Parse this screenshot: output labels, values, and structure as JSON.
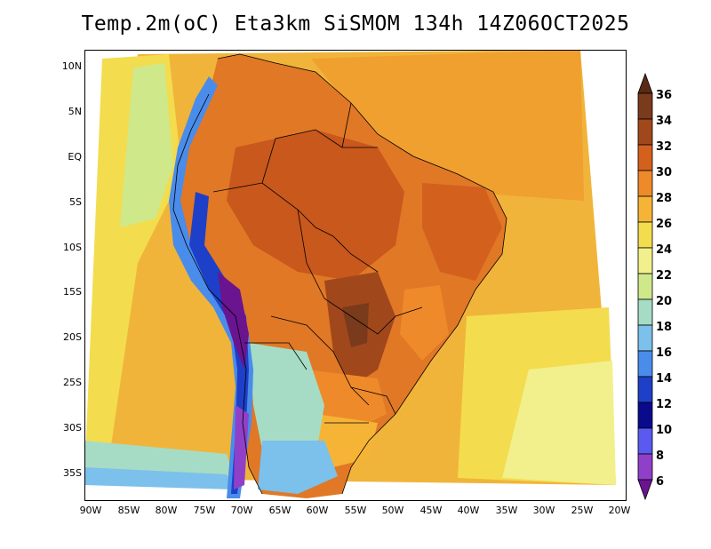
{
  "title": "Temp.2m(oC) Eta3km SiSMOM 134h 14Z06OCT2025",
  "lat_labels": [
    "10N",
    "5N",
    "EQ",
    "5S",
    "10S",
    "15S",
    "20S",
    "25S",
    "30S",
    "35S"
  ],
  "lon_labels": [
    "90W",
    "85W",
    "80W",
    "75W",
    "70W",
    "65W",
    "60W",
    "55W",
    "50W",
    "45W",
    "40W",
    "35W",
    "30W",
    "25W",
    "20W"
  ],
  "colorbar": {
    "labels": [
      "36",
      "34",
      "32",
      "30",
      "28",
      "26",
      "24",
      "22",
      "20",
      "18",
      "16",
      "14",
      "12",
      "10",
      "8",
      "6"
    ],
    "colors": [
      "#5a2a14",
      "#7a3a1c",
      "#a0481c",
      "#d4601e",
      "#ee8a2a",
      "#f5b436",
      "#f3dc4e",
      "#f2f08c",
      "#cfe88a",
      "#a6dcc6",
      "#7cc0ec",
      "#4a8cea",
      "#1e40c8",
      "#0a0a8c",
      "#5a5af0",
      "#9040c8",
      "#6a1490"
    ]
  }
}
